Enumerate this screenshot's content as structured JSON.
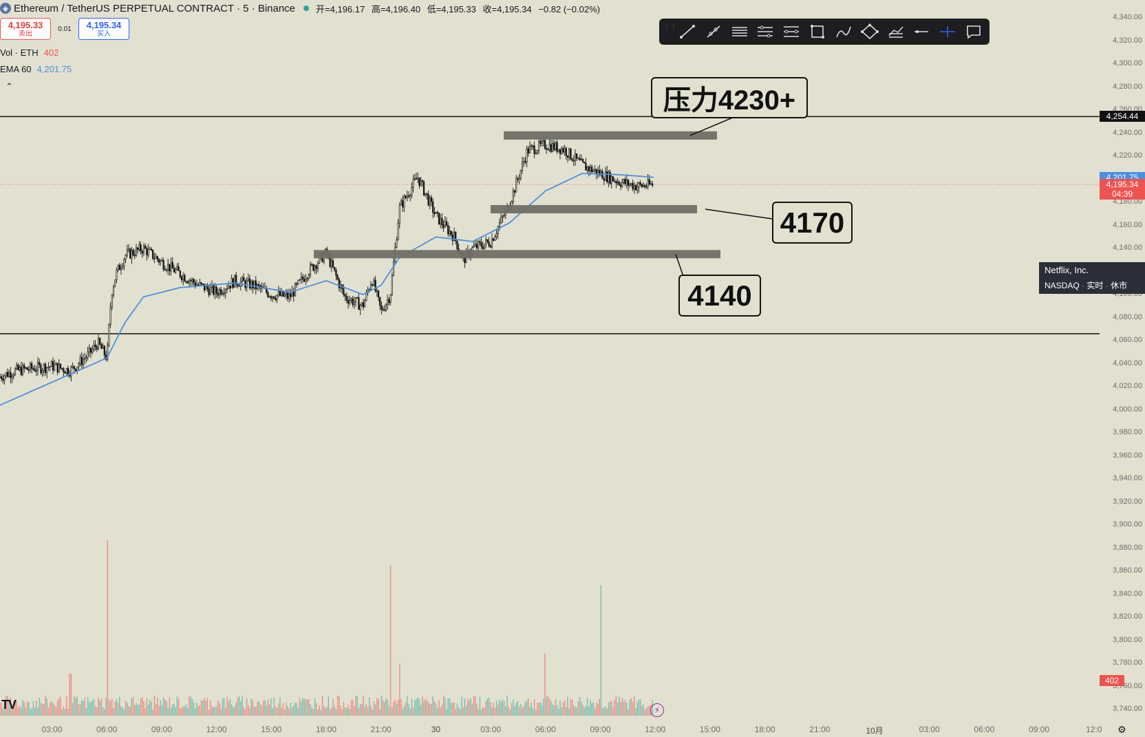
{
  "header": {
    "symbol_title": "Ethereum / TetherUS PERPETUAL CONTRACT · 5 · Binance",
    "open": "开=4,196.17",
    "high": "高=4,196.40",
    "low": "低=4,195.33",
    "close": "收=4,195.34",
    "change": "−0.82 (−0.02%)"
  },
  "trade": {
    "sell_price": "4,195.33",
    "sell_label": "卖出",
    "spread": "0.01",
    "buy_price": "4,195.34",
    "buy_label": "买入"
  },
  "indicators": {
    "vol_label": "Vol · ETH",
    "vol_value": "402",
    "ema_label": "EMA 60",
    "ema_value": "4,201.75"
  },
  "toolbar": {
    "tools": [
      "trend-line-icon",
      "ray-icon",
      "parallel-channel-icon",
      "regression-icon",
      "fib-icon",
      "rectangle-icon",
      "brush-icon",
      "path-icon",
      "text-lines-icon",
      "horizontal-line-icon",
      "crosshair-icon",
      "comment-icon"
    ]
  },
  "annotations": {
    "resistance": "压力4230+",
    "support_1": "4170",
    "support_2": "4140"
  },
  "price_axis": {
    "ticks": [
      "4,340.00",
      "4,320.00",
      "4,300.00",
      "4,280.00",
      "4,260.00",
      "4,240.00",
      "4,220.00",
      "4,200.00",
      "4,180.00",
      "4,160.00",
      "4,140.00",
      "4,120.00",
      "4,100.00",
      "4,080.00",
      "4,060.00",
      "4,040.00",
      "4,020.00",
      "4,000.00",
      "3,980.00",
      "3,960.00",
      "3,940.00",
      "3,920.00",
      "3,900.00",
      "3,880.00",
      "3,860.00",
      "3,840.00",
      "3,820.00",
      "3,800.00",
      "3,780.00",
      "3,760.00",
      "3,740.00"
    ],
    "hline_label": "4,254.44",
    "ema_tag": "4,201.75",
    "price_tag": "4,195.34",
    "countdown": "04:39",
    "volume_tag": "402"
  },
  "time_axis": {
    "ticks": [
      "03:00",
      "06:00",
      "09:00",
      "12:00",
      "15:00",
      "18:00",
      "21:00",
      "30",
      "03:00",
      "06:00",
      "09:00",
      "12:00",
      "15:00",
      "18:00",
      "21:00",
      "10月",
      "03:00",
      "06:00",
      "09:00",
      "12:0"
    ]
  },
  "tooltip": {
    "title": "Netflix, Inc.",
    "exchange": "NASDAQ",
    "realtime": "实时",
    "status": "休市"
  },
  "colors": {
    "background": "#e2e1cf",
    "ema": "#4a90e2",
    "up": "#26a69a",
    "down": "#ef5350",
    "zone": "#6f6f66"
  },
  "chart_data": {
    "type": "candlestick",
    "x_range": [
      "29 00:00",
      "30 12:00"
    ],
    "y_range": [
      3740,
      4345
    ],
    "horizontal_lines": [
      4254.44,
      4066
    ],
    "zones": [
      {
        "label": "压力4230+",
        "price": 4238
      },
      {
        "label": "4170",
        "price": 4174
      },
      {
        "label": "4140",
        "price": 4135
      }
    ],
    "price_path": [
      [
        "29 00:00",
        4028
      ],
      [
        "29 01:00",
        4034
      ],
      [
        "29 02:00",
        4036
      ],
      [
        "29 03:00",
        4038
      ],
      [
        "29 04:00",
        4034
      ],
      [
        "29 05:00",
        4048
      ],
      [
        "29 05:30",
        4058
      ],
      [
        "29 06:00",
        4045
      ],
      [
        "29 06:15",
        4102
      ],
      [
        "29 06:30",
        4118
      ],
      [
        "29 07:00",
        4134
      ],
      [
        "29 08:00",
        4140
      ],
      [
        "29 09:00",
        4128
      ],
      [
        "29 10:00",
        4118
      ],
      [
        "29 11:00",
        4108
      ],
      [
        "29 12:00",
        4102
      ],
      [
        "29 13:00",
        4112
      ],
      [
        "29 14:00",
        4108
      ],
      [
        "29 15:00",
        4100
      ],
      [
        "29 16:00",
        4098
      ],
      [
        "29 17:00",
        4120
      ],
      [
        "29 18:00",
        4136
      ],
      [
        "29 19:00",
        4098
      ],
      [
        "29 20:00",
        4090
      ],
      [
        "29 20:30",
        4114
      ],
      [
        "29 21:00",
        4085
      ],
      [
        "29 21:30",
        4100
      ],
      [
        "29 22:00",
        4175
      ],
      [
        "29 23:00",
        4202
      ],
      [
        "30 00:00",
        4168
      ],
      [
        "30 01:00",
        4150
      ],
      [
        "30 01:30",
        4130
      ],
      [
        "30 02:00",
        4140
      ],
      [
        "30 03:00",
        4146
      ],
      [
        "30 04:00",
        4178
      ],
      [
        "30 05:00",
        4225
      ],
      [
        "30 06:00",
        4230
      ],
      [
        "30 07:00",
        4226
      ],
      [
        "30 08:00",
        4212
      ],
      [
        "30 09:00",
        4205
      ],
      [
        "30 10:00",
        4198
      ],
      [
        "30 11:00",
        4194
      ],
      [
        "30 11:55",
        4195.34
      ]
    ],
    "ema60_path": [
      [
        "29 00:00",
        4003
      ],
      [
        "29 05:00",
        4038
      ],
      [
        "29 06:00",
        4045
      ],
      [
        "29 07:00",
        4076
      ],
      [
        "29 08:00",
        4098
      ],
      [
        "29 10:00",
        4106
      ],
      [
        "29 13:00",
        4110
      ],
      [
        "29 16:00",
        4102
      ],
      [
        "29 18:00",
        4112
      ],
      [
        "29 20:00",
        4100
      ],
      [
        "29 21:00",
        4108
      ],
      [
        "29 22:00",
        4132
      ],
      [
        "30 00:00",
        4150
      ],
      [
        "30 02:00",
        4146
      ],
      [
        "30 04:00",
        4162
      ],
      [
        "30 06:00",
        4190
      ],
      [
        "30 08:00",
        4205
      ],
      [
        "30 10:00",
        4204
      ],
      [
        "30 11:55",
        4201.75
      ]
    ],
    "volume_spikes": [
      [
        "29 06:00",
        1750
      ],
      [
        "29 21:30",
        1500
      ],
      [
        "30 09:00",
        1300
      ],
      [
        "30 06:00",
        620
      ],
      [
        "29 04:00",
        420
      ],
      [
        "29 22:00",
        520
      ]
    ],
    "current_volume": 402
  }
}
